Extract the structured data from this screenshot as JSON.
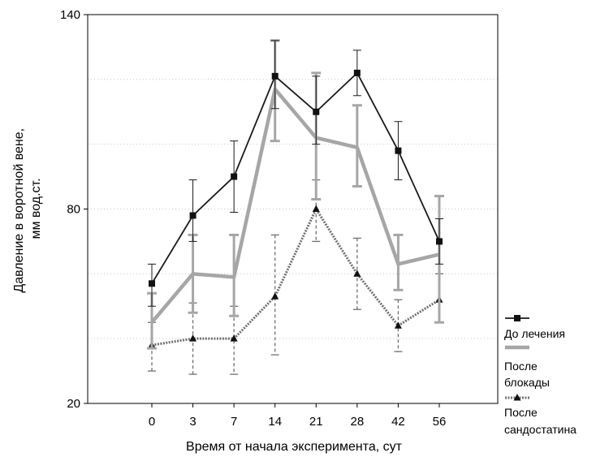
{
  "chart_data": {
    "type": "line",
    "xlabel": "Время от начала эксперимента, сут",
    "ylabel_lines": [
      "Давление в воротной вене,",
      "мм вод.ст."
    ],
    "ylim": [
      20,
      140
    ],
    "y_ticks_labeled": [
      "140",
      "80",
      "20"
    ],
    "y_gridlines": [
      40,
      60,
      80,
      100,
      120
    ],
    "grid": "horizontal dotted",
    "categories": [
      "0",
      "3",
      "7",
      "14",
      "21",
      "28",
      "42",
      "56"
    ],
    "legend_position": "right",
    "series": [
      {
        "name": "До лечения",
        "name_lines": [
          "До лечения"
        ],
        "color": "#1a1a1a",
        "style": "solid-thin",
        "marker": "square",
        "values": [
          57,
          78,
          90,
          121,
          110,
          122,
          98,
          70
        ],
        "err_low": [
          50,
          70,
          79,
          111,
          100,
          115,
          89,
          63
        ],
        "err_high": [
          63,
          89,
          101,
          132,
          121,
          129,
          107,
          77
        ]
      },
      {
        "name": "После блокады",
        "name_lines": [
          "После",
          "блокады"
        ],
        "color": "#a6a6a6",
        "style": "solid-thick",
        "marker": "none",
        "values": [
          45,
          60,
          59,
          117,
          102,
          99,
          63,
          66
        ],
        "err_low": [
          37,
          48,
          47,
          101,
          83,
          87,
          55,
          45
        ],
        "err_high": [
          54,
          72,
          72,
          132,
          122,
          112,
          72,
          84
        ]
      },
      {
        "name": "После сандостатина",
        "name_lines": [
          "После",
          "сандостатина"
        ],
        "color": "#707070",
        "style": "dashed",
        "marker": "triangle",
        "values": [
          38,
          40,
          40,
          53,
          80,
          60,
          44,
          52
        ],
        "err_low": [
          30,
          29,
          29,
          35,
          70,
          49,
          36,
          45
        ],
        "err_high": [
          45,
          51,
          50,
          72,
          89,
          71,
          52,
          60
        ]
      }
    ]
  }
}
